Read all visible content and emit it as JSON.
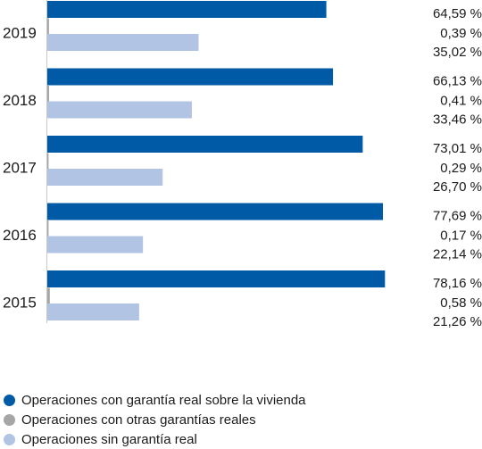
{
  "chart_data": {
    "type": "bar",
    "orientation": "horizontal",
    "categories": [
      "2019",
      "2018",
      "2017",
      "2016",
      "2015"
    ],
    "series": [
      {
        "name": "Operaciones con garantía real sobre la vivienda",
        "color": "#005aa5",
        "values": [
          64.59,
          66.13,
          73.01,
          77.69,
          78.16
        ],
        "labels": [
          "64,59 %",
          "66,13 %",
          "73,01 %",
          "77,69 %",
          "78,16 %"
        ]
      },
      {
        "name": "Operaciones con otras garantías reales",
        "color": "#a6a6a6",
        "values": [
          0.39,
          0.41,
          0.29,
          0.17,
          0.58
        ],
        "labels": [
          "0,39 %",
          "0,41 %",
          "0,29 %",
          "0,17 %",
          "0,58 %"
        ]
      },
      {
        "name": "Operaciones sin garantía real",
        "color": "#b1c4e4",
        "values": [
          35.02,
          33.46,
          26.7,
          22.14,
          21.26
        ],
        "labels": [
          "35,02 %",
          "33,46 %",
          "26,70 %",
          "22,14 %",
          "21,26 %"
        ]
      }
    ],
    "xlim": [
      0,
      100
    ],
    "grid": false,
    "legend_position": "bottom-left"
  }
}
